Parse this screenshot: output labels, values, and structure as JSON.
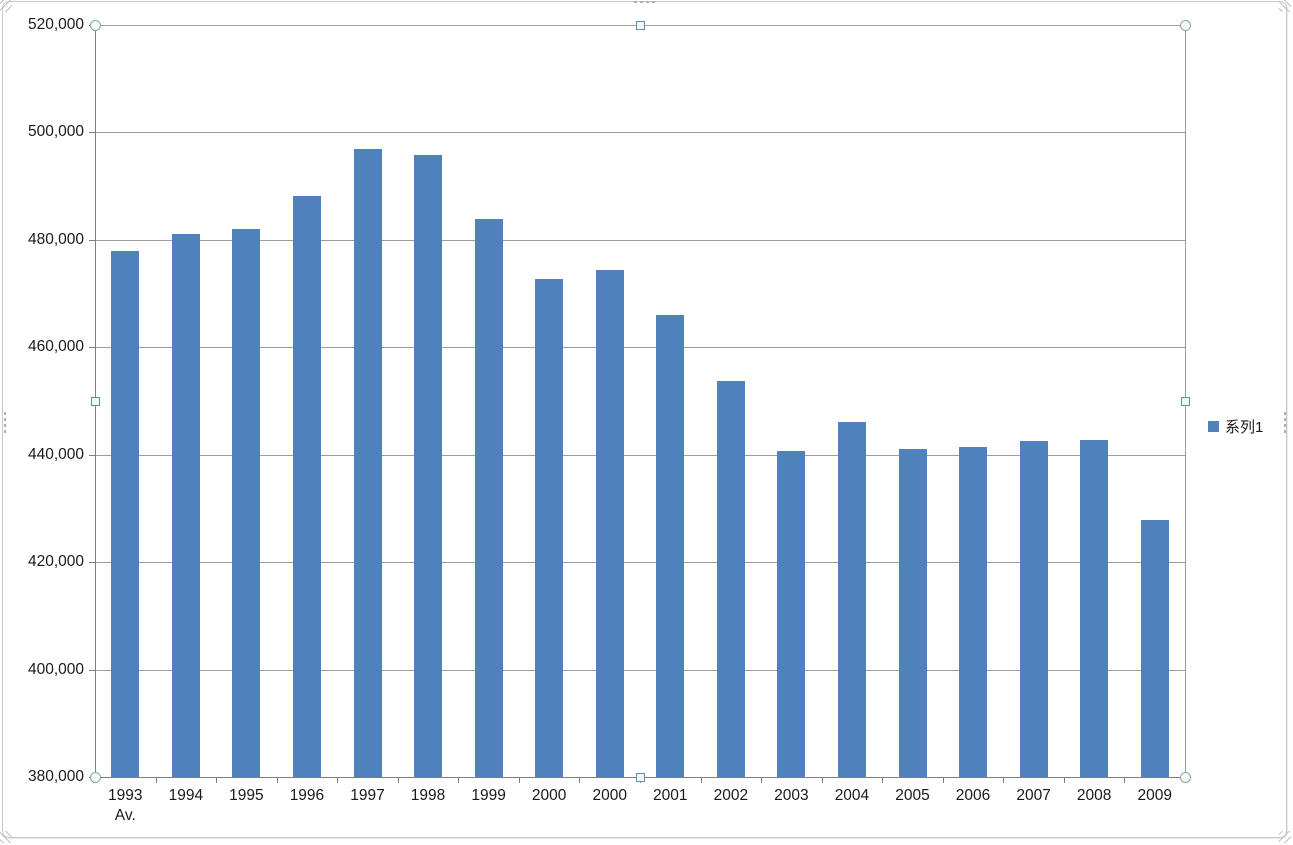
{
  "chart_data": {
    "type": "bar",
    "categories": [
      "1993 Av.",
      "1994",
      "1995",
      "1996",
      "1997",
      "1998",
      "1999",
      "2000",
      "2000",
      "2001",
      "2002",
      "2003",
      "2004",
      "2005",
      "2006",
      "2007",
      "2008",
      "2009"
    ],
    "values": [
      478000,
      481000,
      482100,
      488200,
      496900,
      495800,
      483900,
      472700,
      474300,
      466000,
      453700,
      440600,
      446100,
      441000,
      441400,
      442500,
      442700,
      427800
    ],
    "title": "",
    "xlabel": "",
    "ylabel": "",
    "ylim": [
      380000,
      520000
    ],
    "ytick_step": 20000,
    "ytick_labels": [
      "380,000",
      "400,000",
      "420,000",
      "440,000",
      "460,000",
      "480,000",
      "500,000",
      "520,000"
    ],
    "grid": true,
    "legend_position": "right",
    "legend": {
      "entries": [
        {
          "label": "系列1",
          "color": "#4F81BD"
        }
      ]
    },
    "bar_color": "#4F81BD"
  },
  "colors": {
    "bar": "#4F81BD",
    "gridline": "#9c9c9c",
    "axis": "#7f7f7f",
    "handle_border": "#5e93a0",
    "frame_border": "#c9c9c9",
    "label_text": "#1a1a1a"
  },
  "selection": {
    "handles": [
      "top-left",
      "top-center",
      "top-right",
      "middle-left",
      "middle-right",
      "bottom-left",
      "bottom-center",
      "bottom-right"
    ]
  }
}
